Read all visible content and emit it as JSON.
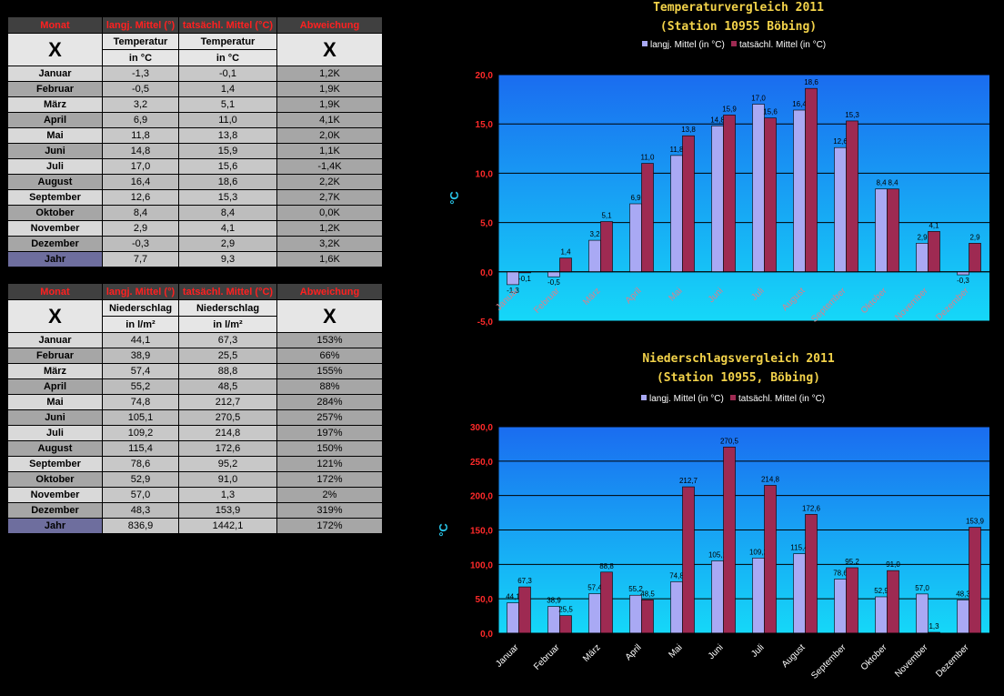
{
  "temp_table": {
    "headers": [
      "Monat",
      "langj. Mittel (°)",
      "tatsächl. Mittel (°C)",
      "Abweichung"
    ],
    "x_mark": "X",
    "sub_label": "Temperatur",
    "sub_unit": "in °C",
    "rows": [
      {
        "month": "Januar",
        "longterm": "-1,3",
        "actual": "-0,1",
        "deviation": "1,2K",
        "sign": "pos"
      },
      {
        "month": "Februar",
        "longterm": "-0,5",
        "actual": "1,4",
        "deviation": "1,9K",
        "sign": "pos"
      },
      {
        "month": "März",
        "longterm": "3,2",
        "actual": "5,1",
        "deviation": "1,9K",
        "sign": "pos"
      },
      {
        "month": "April",
        "longterm": "6,9",
        "actual": "11,0",
        "deviation": "4,1K",
        "sign": "pos"
      },
      {
        "month": "Mai",
        "longterm": "11,8",
        "actual": "13,8",
        "deviation": "2,0K",
        "sign": "pos"
      },
      {
        "month": "Juni",
        "longterm": "14,8",
        "actual": "15,9",
        "deviation": "1,1K",
        "sign": "pos"
      },
      {
        "month": "Juli",
        "longterm": "17,0",
        "actual": "15,6",
        "deviation": "-1,4K",
        "sign": "neg"
      },
      {
        "month": "August",
        "longterm": "16,4",
        "actual": "18,6",
        "deviation": "2,2K",
        "sign": "pos"
      },
      {
        "month": "September",
        "longterm": "12,6",
        "actual": "15,3",
        "deviation": "2,7K",
        "sign": "pos"
      },
      {
        "month": "Oktober",
        "longterm": "8,4",
        "actual": "8,4",
        "deviation": "0,0K",
        "sign": "zero"
      },
      {
        "month": "November",
        "longterm": "2,9",
        "actual": "4,1",
        "deviation": "1,2K",
        "sign": "pos"
      },
      {
        "month": "Dezember",
        "longterm": "-0,3",
        "actual": "2,9",
        "deviation": "3,2K",
        "sign": "pos"
      }
    ],
    "year": {
      "month": "Jahr",
      "longterm": "7,7",
      "actual": "9,3",
      "deviation": "1,6K",
      "sign": "pos"
    }
  },
  "precip_table": {
    "headers": [
      "Monat",
      "langj. Mittel (°)",
      "tatsächl. Mittel (°C)",
      "Abweichung"
    ],
    "x_mark": "X",
    "sub_label": "Niederschlag",
    "sub_unit": "in l/m²",
    "rows": [
      {
        "month": "Januar",
        "longterm": "44,1",
        "actual": "67,3",
        "deviation": "153%"
      },
      {
        "month": "Februar",
        "longterm": "38,9",
        "actual": "25,5",
        "deviation": "66%"
      },
      {
        "month": "März",
        "longterm": "57,4",
        "actual": "88,8",
        "deviation": "155%"
      },
      {
        "month": "April",
        "longterm": "55,2",
        "actual": "48,5",
        "deviation": "88%"
      },
      {
        "month": "Mai",
        "longterm": "74,8",
        "actual": "212,7",
        "deviation": "284%"
      },
      {
        "month": "Juni",
        "longterm": "105,1",
        "actual": "270,5",
        "deviation": "257%"
      },
      {
        "month": "Juli",
        "longterm": "109,2",
        "actual": "214,8",
        "deviation": "197%"
      },
      {
        "month": "August",
        "longterm": "115,4",
        "actual": "172,6",
        "deviation": "150%"
      },
      {
        "month": "September",
        "longterm": "78,6",
        "actual": "95,2",
        "deviation": "121%"
      },
      {
        "month": "Oktober",
        "longterm": "52,9",
        "actual": "91,0",
        "deviation": "172%"
      },
      {
        "month": "November",
        "longterm": "57,0",
        "actual": "1,3",
        "deviation": "2%"
      },
      {
        "month": "Dezember",
        "longterm": "48,3",
        "actual": "153,9",
        "deviation": "319%"
      }
    ],
    "year": {
      "month": "Jahr",
      "longterm": "836,9",
      "actual": "1442,1",
      "deviation": "172%"
    }
  },
  "colors": {
    "series1": "#a9a9f4",
    "series2": "#9e2a52",
    "plot_top": "#1a6cf0",
    "plot_bottom": "#15d8f8",
    "axis_tick": "#ff2a2a",
    "title": "#f2d24a"
  },
  "chart_data": [
    {
      "type": "bar",
      "title": "Temperaturvergleich 2011",
      "subtitle": "(Station 10955 Böbing)",
      "ylabel": "°C",
      "ylim": [
        -5,
        20
      ],
      "yticks": [
        "-5,0",
        "0,0",
        "5,0",
        "10,0",
        "15,0",
        "20,0"
      ],
      "grid": true,
      "legend_placement": "top",
      "categories": [
        "Januar",
        "Februar",
        "März",
        "April",
        "Mai",
        "Juni",
        "Juli",
        "August",
        "September",
        "Oktober",
        "November",
        "Dezember"
      ],
      "series": [
        {
          "name": "langj. Mittel (in °C)",
          "values": [
            -1.3,
            -0.5,
            3.2,
            6.9,
            11.8,
            14.8,
            17.0,
            16.4,
            12.6,
            8.4,
            2.9,
            -0.3
          ],
          "labels": [
            "-1,3",
            "-0,5",
            "3,2",
            "6,9",
            "11,8",
            "14,8",
            "17,0",
            "16,4",
            "12,6",
            "8,4",
            "2,9",
            "-0,3"
          ]
        },
        {
          "name": "tatsächl. Mittel (in °C)",
          "values": [
            -0.1,
            1.4,
            5.1,
            11.0,
            13.8,
            15.9,
            15.6,
            18.6,
            15.3,
            8.4,
            4.1,
            2.9
          ],
          "labels": [
            "-0,1",
            "1,4",
            "5,1",
            "11,0",
            "13,8",
            "15,9",
            "15,6",
            "18,6",
            "15,3",
            "8,4",
            "4,1",
            "2,9"
          ]
        }
      ]
    },
    {
      "type": "bar",
      "title": "Niederschlagsvergleich 2011",
      "subtitle": "(Station 10955, Böbing)",
      "ylabel": "°C",
      "ylim": [
        0,
        300
      ],
      "yticks": [
        "0,0",
        "50,0",
        "100,0",
        "150,0",
        "200,0",
        "250,0",
        "300,0"
      ],
      "grid": true,
      "legend_placement": "top",
      "categories": [
        "Januar",
        "Februar",
        "März",
        "April",
        "Mai",
        "Juni",
        "Juli",
        "August",
        "September",
        "Oktober",
        "November",
        "Dezember"
      ],
      "series": [
        {
          "name": "langj. Mittel (in °C)",
          "values": [
            44.1,
            38.9,
            57.4,
            55.2,
            74.8,
            105.1,
            109.2,
            115.4,
            78.6,
            52.9,
            57.0,
            48.3
          ],
          "labels": [
            "44,1",
            "38,9",
            "57,4",
            "55,2",
            "74,8",
            "105,1",
            "109,2",
            "115,4",
            "78,6",
            "52,9",
            "57,0",
            "48,3"
          ]
        },
        {
          "name": "tatsächl. Mittel (in °C)",
          "values": [
            67.3,
            25.5,
            88.8,
            48.5,
            212.7,
            270.5,
            214.8,
            172.6,
            95.2,
            91.0,
            1.3,
            153.9
          ],
          "labels": [
            "67,3",
            "25,5",
            "88,8",
            "48,5",
            "212,7",
            "270,5",
            "214,8",
            "172,6",
            "95,2",
            "91,0",
            "1,3",
            "153,9"
          ]
        }
      ]
    }
  ]
}
